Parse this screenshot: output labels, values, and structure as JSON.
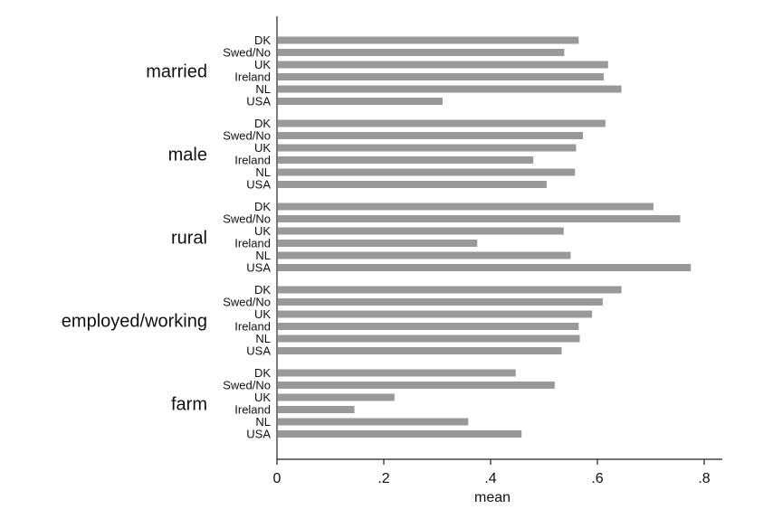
{
  "chart_data": {
    "type": "bar",
    "orientation": "horizontal",
    "title": "",
    "xlabel": "mean",
    "ylabel": "",
    "xlim": [
      0,
      0.84
    ],
    "xticks": [
      0,
      0.2,
      0.4,
      0.6,
      0.8
    ],
    "xtick_labels": [
      "0",
      ".2",
      ".4",
      ".6",
      ".8"
    ],
    "grid": false,
    "legend": "none",
    "bar_color": "#999999",
    "categories": [
      "DK",
      "Swed/No",
      "UK",
      "Ireland",
      "NL",
      "USA"
    ],
    "groups": [
      {
        "name": "married",
        "values": [
          0.565,
          0.538,
          0.62,
          0.612,
          0.645,
          0.31
        ]
      },
      {
        "name": "male",
        "values": [
          0.615,
          0.573,
          0.56,
          0.48,
          0.558,
          0.505
        ]
      },
      {
        "name": "rural",
        "values": [
          0.705,
          0.755,
          0.537,
          0.375,
          0.55,
          0.775
        ]
      },
      {
        "name": "employed/working",
        "values": [
          0.645,
          0.61,
          0.59,
          0.565,
          0.567,
          0.533
        ]
      },
      {
        "name": "farm",
        "values": [
          0.447,
          0.52,
          0.22,
          0.145,
          0.358,
          0.458
        ]
      }
    ]
  }
}
